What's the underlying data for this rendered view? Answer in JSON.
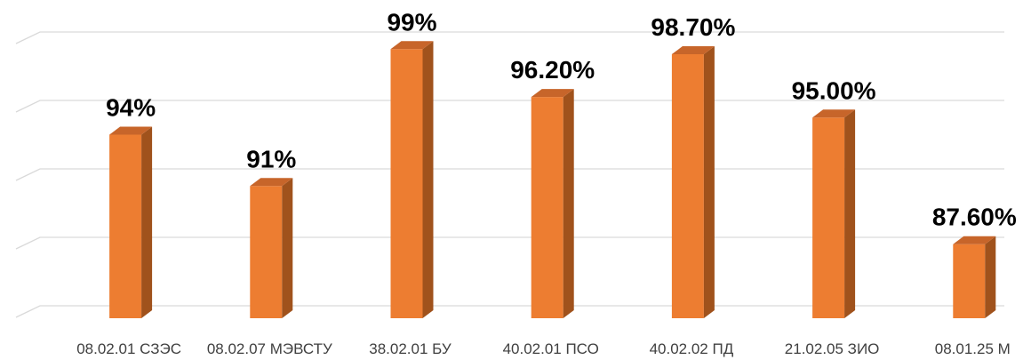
{
  "chart_data": {
    "type": "bar",
    "style": "3d-column",
    "categories": [
      "08.02.01 СЗЭС",
      "08.02.07 МЭВСТУ",
      "38.02.01 БУ",
      "40.02.01 ПСО",
      "40.02.02 ПД",
      "21.02.05 ЗИО",
      "08.01.25 М"
    ],
    "values": [
      94,
      91,
      99,
      96.2,
      98.7,
      95.0,
      87.6
    ],
    "data_labels": [
      "94%",
      "91%",
      "99%",
      "96.20%",
      "98.70%",
      "95.00%",
      "87.60%"
    ],
    "title": "",
    "xlabel": "",
    "ylabel": "",
    "ylim": [
      84,
      100
    ],
    "grid": true,
    "legend": "none",
    "colors": {
      "bar_front": "#ed7d31",
      "bar_side": "#a0521c",
      "bar_top": "#c7652a",
      "grid": "#d9d9d9"
    }
  }
}
